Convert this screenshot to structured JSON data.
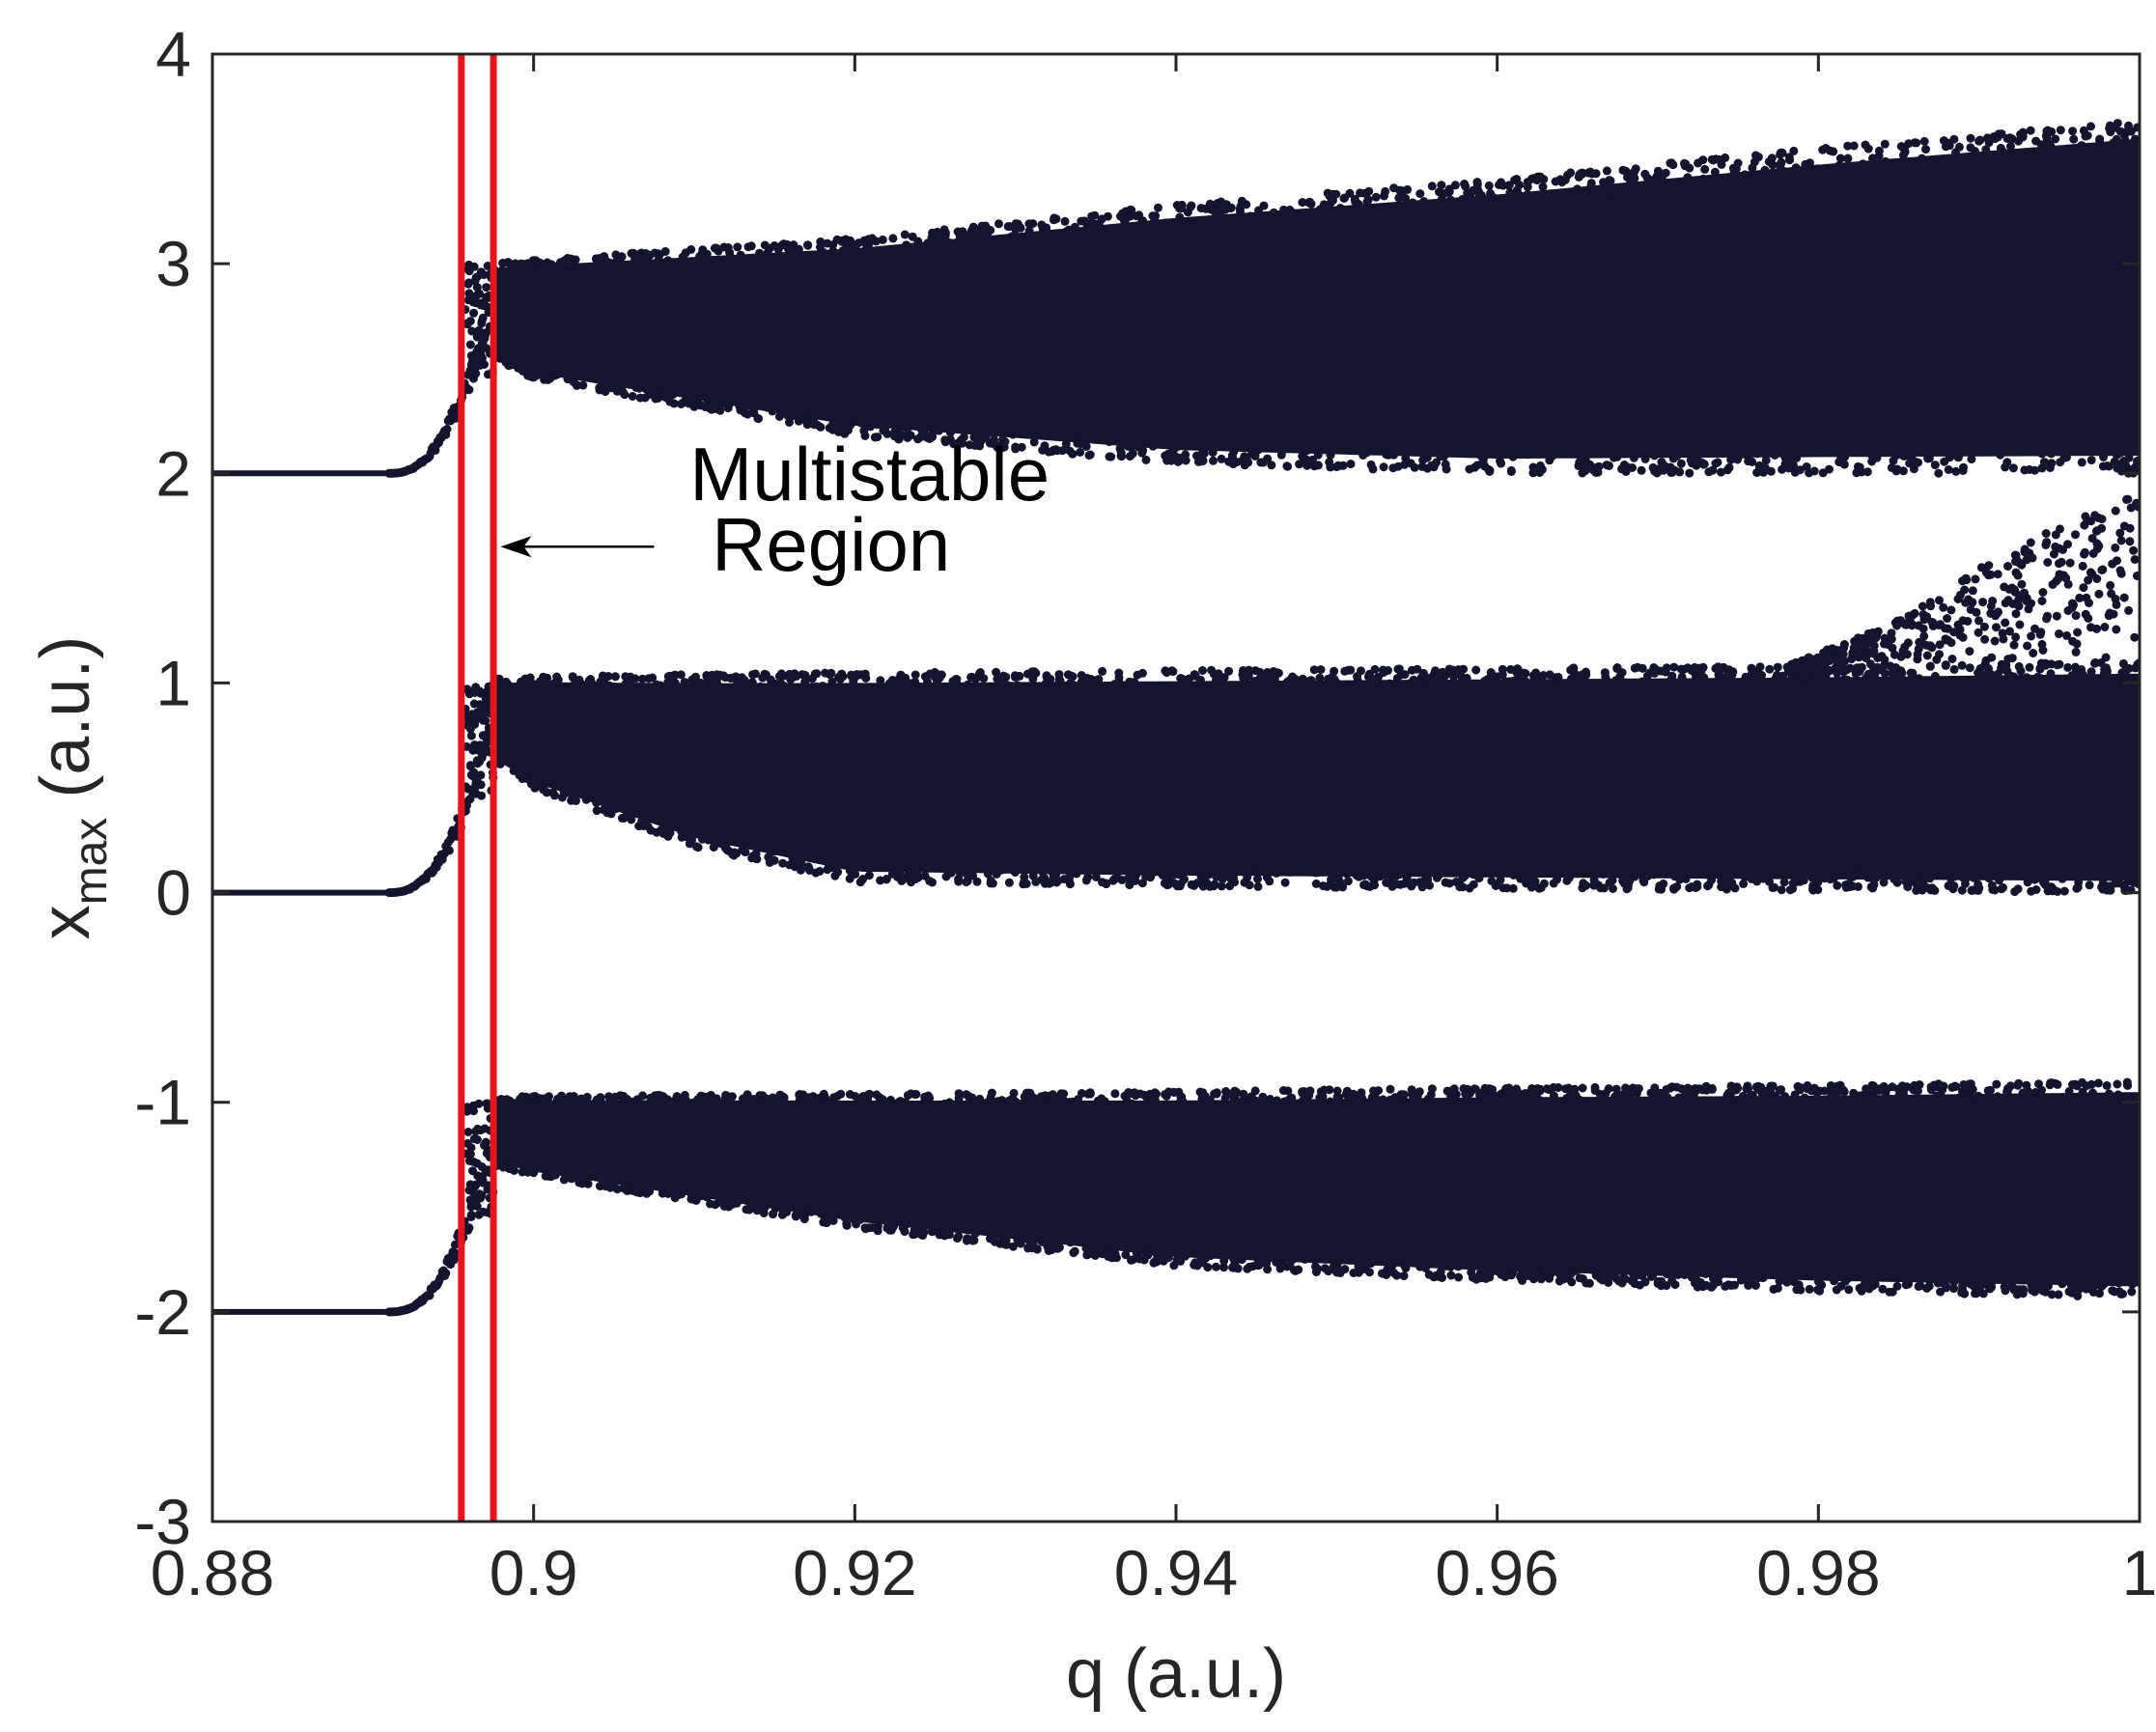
{
  "chart_data": {
    "type": "scatter",
    "title": "",
    "xlabel": "q (a.u.)",
    "ylabel_main": "x",
    "ylabel_sub": "max",
    "ylabel_suffix": " (a.u.)",
    "xlim": [
      0.88,
      1.0
    ],
    "ylim": [
      -3,
      4
    ],
    "xticks": [
      {
        "value": 0.88,
        "label": "0.88"
      },
      {
        "value": 0.9,
        "label": "0.9"
      },
      {
        "value": 0.92,
        "label": "0.92"
      },
      {
        "value": 0.94,
        "label": "0.94"
      },
      {
        "value": 0.96,
        "label": "0.96"
      },
      {
        "value": 0.98,
        "label": "0.98"
      },
      {
        "value": 1.0,
        "label": "1"
      }
    ],
    "yticks": [
      {
        "value": -3,
        "label": "-3"
      },
      {
        "value": -2,
        "label": "-2"
      },
      {
        "value": -1,
        "label": "-1"
      },
      {
        "value": 0,
        "label": "0"
      },
      {
        "value": 1,
        "label": "1"
      },
      {
        "value": 2,
        "label": "2"
      },
      {
        "value": 3,
        "label": "3"
      },
      {
        "value": 4,
        "label": "4"
      }
    ],
    "grid": false,
    "point_color": "#14142e",
    "vlines": [
      {
        "x": 0.8955,
        "color": "#e8141c"
      },
      {
        "x": 0.8975,
        "color": "#e8141c"
      }
    ],
    "annotation": {
      "line1": "Multistable",
      "line2": "Region",
      "text_x": 0.9,
      "arrow_from": [
        0.9075,
        1.65
      ],
      "arrow_to": [
        0.8977,
        1.65
      ]
    },
    "bands": [
      {
        "name": "upper",
        "stable_value": 2,
        "rise_top": 3.0,
        "x_end": 1.0,
        "envelope": [
          {
            "q": 0.8975,
            "lo": 2.55,
            "hi": 3.0
          },
          {
            "q": 0.9,
            "lo": 2.45,
            "hi": 3.02
          },
          {
            "q": 0.92,
            "lo": 2.18,
            "hi": 3.12
          },
          {
            "q": 0.94,
            "lo": 2.05,
            "hi": 3.28
          },
          {
            "q": 0.96,
            "lo": 2.0,
            "hi": 3.4
          },
          {
            "q": 0.98,
            "lo": 2.0,
            "hi": 3.55
          },
          {
            "q": 1.0,
            "lo": 2.0,
            "hi": 3.68
          }
        ]
      },
      {
        "name": "middle",
        "stable_value": 0,
        "rise_top": 1.0,
        "x_end": 1.0,
        "envelope": [
          {
            "q": 0.8975,
            "lo": 0.62,
            "hi": 1.02
          },
          {
            "q": 0.9,
            "lo": 0.5,
            "hi": 1.03
          },
          {
            "q": 0.91,
            "lo": 0.22,
            "hi": 1.04
          },
          {
            "q": 0.92,
            "lo": 0.05,
            "hi": 1.05
          },
          {
            "q": 0.94,
            "lo": 0.03,
            "hi": 1.06
          },
          {
            "q": 0.96,
            "lo": 0.02,
            "hi": 1.07
          },
          {
            "q": 0.98,
            "lo": 0.01,
            "hi": 1.08
          },
          {
            "q": 1.0,
            "lo": 0.0,
            "hi": 1.1
          }
        ]
      },
      {
        "name": "middle-extension",
        "stable_value": null,
        "rise_top": null,
        "x_end": 1.0,
        "envelope": [
          {
            "q": 0.978,
            "lo": 1.05,
            "hi": 1.08
          },
          {
            "q": 0.985,
            "lo": 1.05,
            "hi": 1.3
          },
          {
            "q": 0.99,
            "lo": 1.1,
            "hi": 1.55
          },
          {
            "q": 0.995,
            "lo": 1.1,
            "hi": 1.75
          },
          {
            "q": 1.0,
            "lo": 1.05,
            "hi": 1.9
          }
        ]
      },
      {
        "name": "lower",
        "stable_value": -2,
        "rise_top": -1.0,
        "x_end": 1.0,
        "envelope": [
          {
            "q": 0.8975,
            "lo": -1.3,
            "hi": -0.98
          },
          {
            "q": 0.9,
            "lo": -1.35,
            "hi": -0.97
          },
          {
            "q": 0.92,
            "lo": -1.6,
            "hi": -0.96
          },
          {
            "q": 0.94,
            "lo": -1.78,
            "hi": -0.95
          },
          {
            "q": 0.96,
            "lo": -1.85,
            "hi": -0.93
          },
          {
            "q": 0.98,
            "lo": -1.9,
            "hi": -0.92
          },
          {
            "q": 1.0,
            "lo": -1.93,
            "hi": -0.9
          }
        ]
      }
    ],
    "bifurcation_onset_q": 0.891
  }
}
